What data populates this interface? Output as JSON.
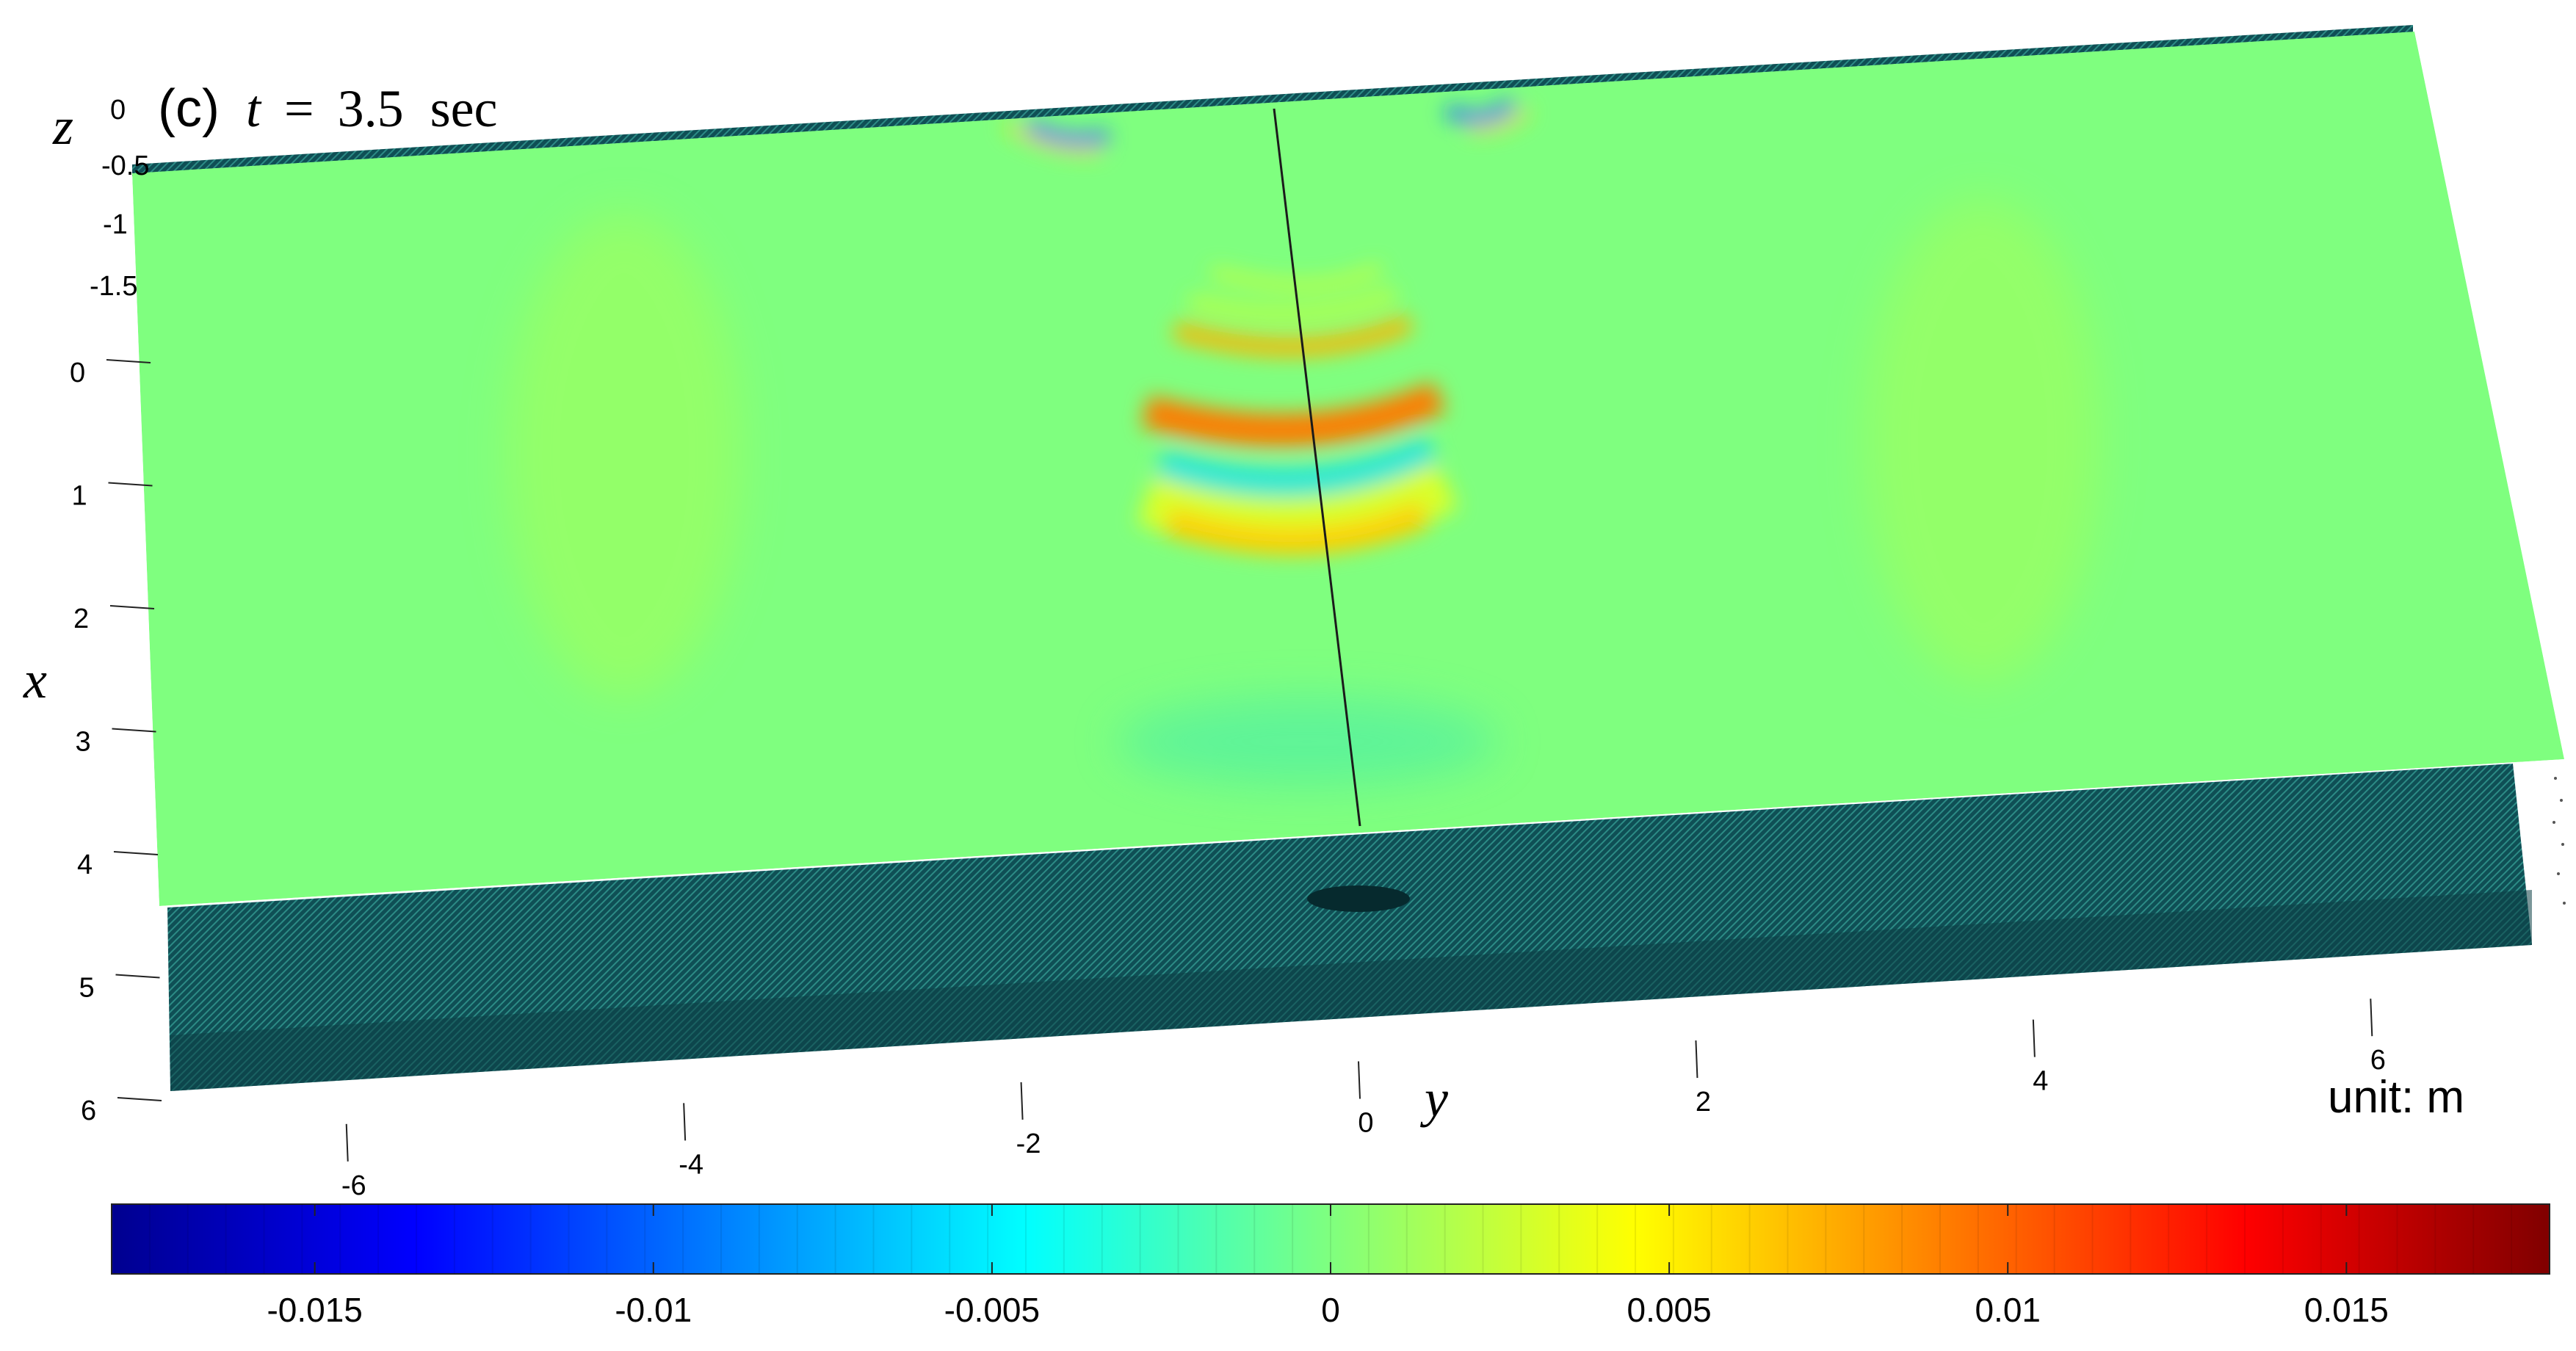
{
  "chart_data": {
    "type": "heatmap",
    "title": {
      "panel": "(c)",
      "variable": "t",
      "equals": "=",
      "value": "3.5",
      "unit": "sec"
    },
    "unit_note": "unit: m",
    "axes": {
      "x": {
        "label": "x",
        "ticks": [
          "0",
          "1",
          "2",
          "3",
          "4",
          "5",
          "6"
        ],
        "range": [
          0,
          6
        ]
      },
      "y": {
        "label": "y",
        "ticks": [
          "-6",
          "-4",
          "-2",
          "0",
          "2",
          "4",
          "6"
        ],
        "range": [
          -7,
          7
        ]
      },
      "z": {
        "label": "z",
        "ticks": [
          "0",
          "-0.5",
          "-1",
          "-1.5"
        ]
      }
    },
    "colorbar": {
      "ticks": [
        "-0.015",
        "-0.01",
        "-0.005",
        "0",
        "0.005",
        "0.01",
        "0.015"
      ],
      "tick_values": [
        -0.015,
        -0.01,
        -0.005,
        0,
        0.005,
        0.01,
        0.015
      ],
      "range": [
        -0.018,
        0.018
      ],
      "colormap": "jet",
      "colors": [
        "#00008f",
        "#0000ff",
        "#00ffff",
        "#7fff7f",
        "#ffff00",
        "#ff0000",
        "#800000"
      ]
    },
    "surface_features": [
      {
        "x": 1.3,
        "half_width_y": 1.8,
        "value": 0.004
      },
      {
        "x": 1.8,
        "half_width_y": 1.6,
        "value": 0.012
      },
      {
        "x": 2.2,
        "half_width_y": 1.5,
        "value": -0.008
      },
      {
        "x": 2.6,
        "half_width_y": 1.4,
        "value": 0.011
      },
      {
        "x": -0.3,
        "half_width_y": 0.5,
        "value": -0.012
      }
    ]
  }
}
